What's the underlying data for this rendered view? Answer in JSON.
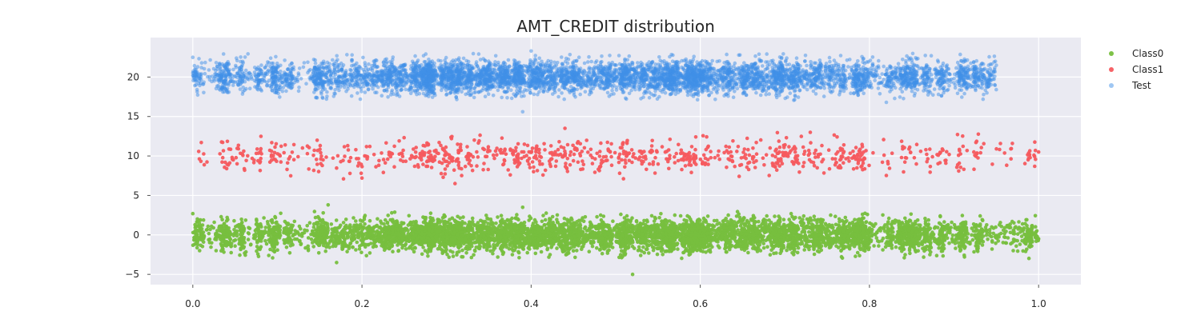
{
  "chart_data": {
    "type": "scatter",
    "title": "AMT_CREDIT distribution",
    "xlabel": "",
    "ylabel": "",
    "xlim": [
      -0.05,
      1.05
    ],
    "ylim": [
      -6.3,
      25
    ],
    "x_ticks": [
      0.0,
      0.2,
      0.4,
      0.6,
      0.8,
      1.0
    ],
    "x_tick_labels": [
      "0.0",
      "0.2",
      "0.4",
      "0.6",
      "0.8",
      "1.0"
    ],
    "y_ticks": [
      -5,
      0,
      5,
      10,
      15,
      20
    ],
    "y_tick_labels": [
      "−5",
      "0",
      "5",
      "10",
      "15",
      "20"
    ],
    "grid": true,
    "legend_position": "right",
    "background": "#eaeaf2",
    "series": [
      {
        "name": "Class0",
        "color": "#77bf3e",
        "alpha": 0.95,
        "center_y": 0,
        "jitter_sd": 1.0,
        "x_range": [
          0.0,
          1.0
        ],
        "approx_points": 6500,
        "sample_points": [
          [
            0.0,
            2.7
          ],
          [
            0.17,
            -3.5
          ],
          [
            0.52,
            -5.0
          ],
          [
            0.97,
            -2.0
          ],
          [
            1.0,
            -0.5
          ],
          [
            0.16,
            3.8
          ],
          [
            0.39,
            3.5
          ]
        ]
      },
      {
        "name": "Class1",
        "color": "#f65a5e",
        "alpha": 0.95,
        "center_y": 10,
        "jitter_sd": 1.0,
        "x_range": [
          0.0,
          1.0
        ],
        "approx_points": 900,
        "sample_points": [
          [
            0.01,
            11.7
          ],
          [
            0.04,
            8.4
          ],
          [
            0.2,
            7.2
          ],
          [
            0.31,
            6.5
          ],
          [
            0.44,
            13.5
          ],
          [
            0.73,
            13.0
          ],
          [
            1.0,
            10.5
          ]
        ]
      },
      {
        "name": "Test",
        "color": "#3f8fe8",
        "alpha": 0.5,
        "center_y": 20,
        "jitter_sd": 1.0,
        "x_range": [
          0.0,
          0.95
        ],
        "approx_points": 6500,
        "sample_points": [
          [
            0.0,
            22.5
          ],
          [
            0.39,
            15.6
          ],
          [
            0.4,
            23.3
          ],
          [
            0.82,
            16.8
          ],
          [
            0.95,
            21.5
          ],
          [
            0.94,
            19.5
          ]
        ]
      }
    ]
  }
}
